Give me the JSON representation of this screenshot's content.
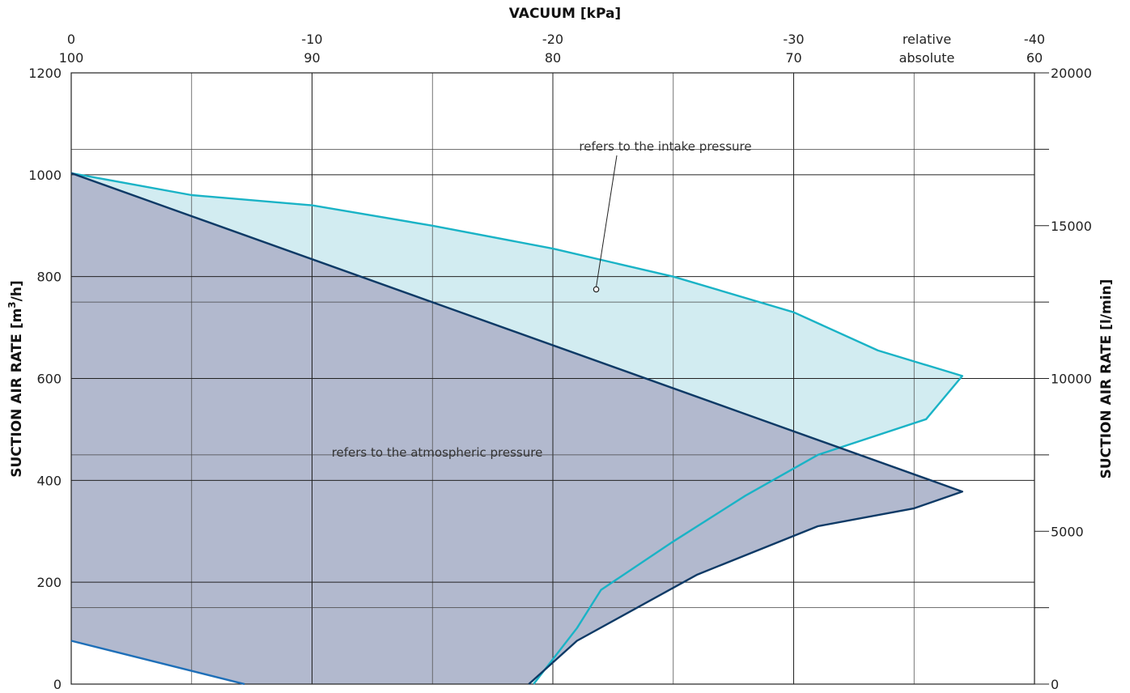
{
  "chart_data": {
    "type": "area",
    "title": "",
    "top_axis": {
      "title": "VACUUM [kPa]",
      "relative_ticks": [
        "0",
        "-10",
        "-20",
        "-30",
        "-40"
      ],
      "absolute_ticks": [
        "100",
        "90",
        "80",
        "70",
        "60"
      ],
      "relative_label": "relative",
      "absolute_label": "absolute",
      "range_relative_kpa": [
        0,
        -40
      ]
    },
    "y_left": {
      "title_main": "SUCTION AIR RATE  [m",
      "title_sup": "3",
      "title_end": "/h]",
      "ticks": [
        "0",
        "200",
        "400",
        "600",
        "800",
        "1000",
        "1200"
      ],
      "range": [
        0,
        1200
      ],
      "unit": "m3/h"
    },
    "y_right": {
      "title": "SUCTION AIR RATE  [l/min]",
      "ticks": [
        "0",
        "5000",
        "10000",
        "15000",
        "20000"
      ],
      "range": [
        0,
        20000
      ],
      "unit": "l/min"
    },
    "grid": true,
    "series": [
      {
        "name": "refers to the intake pressure",
        "color": "#1ab3c6",
        "fill": "#d2ecf1",
        "points": [
          [
            0,
            1003
          ],
          [
            -5,
            960
          ],
          [
            -10,
            940
          ],
          [
            -15,
            900
          ],
          [
            -20,
            855
          ],
          [
            -25,
            800
          ],
          [
            -30,
            730
          ],
          [
            -33.5,
            655
          ],
          [
            -37,
            605
          ],
          [
            -35.5,
            520
          ],
          [
            -31,
            450
          ],
          [
            -28,
            370
          ],
          [
            -25,
            280
          ],
          [
            -22,
            185
          ],
          [
            -21,
            110
          ],
          [
            -19.2,
            0
          ]
        ]
      },
      {
        "name": "refers to the atmospheric pressure",
        "color": "#0e3a66",
        "fill": "#b2b9ce",
        "points": [
          [
            0,
            1003
          ],
          [
            -37,
            378
          ],
          [
            -35,
            345
          ],
          [
            -31,
            310
          ],
          [
            -26,
            215
          ],
          [
            -21,
            85
          ],
          [
            -19,
            0
          ],
          [
            -7,
            0
          ],
          [
            0,
            85
          ]
        ]
      },
      {
        "name": "",
        "color": "#1e6fb8",
        "points": [
          [
            0,
            85
          ],
          [
            -7.2,
            0
          ]
        ]
      }
    ],
    "annotations": [
      {
        "text": "refers to the intake pressure",
        "point": [
          -21.8,
          775
        ]
      },
      {
        "text": "refers to the atmospheric pressure"
      }
    ]
  }
}
